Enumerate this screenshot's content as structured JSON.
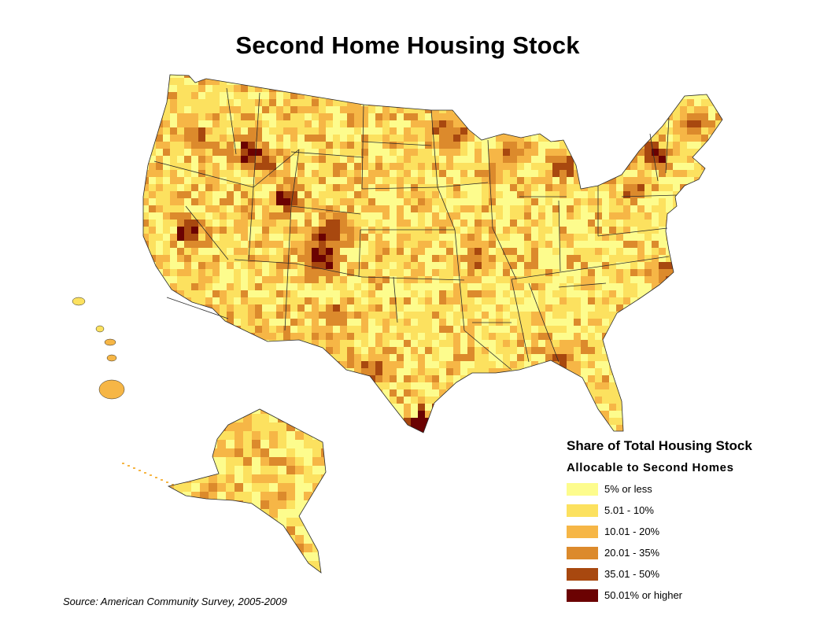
{
  "title": "Second Home Housing Stock",
  "legend": {
    "title_line1": "Share of Total Housing Stock",
    "title_line2": "Allocable to Second Homes",
    "classes": [
      {
        "label": "5% or less",
        "color": "#fdfc8d"
      },
      {
        "label": "5.01 - 10%",
        "color": "#fce15f"
      },
      {
        "label": "10.01 - 20%",
        "color": "#f6b646"
      },
      {
        "label": "20.01 - 35%",
        "color": "#dc8a2c"
      },
      {
        "label": "35.01 - 50%",
        "color": "#a8480f"
      },
      {
        "label": "50.01% or higher",
        "color": "#6b0202"
      }
    ]
  },
  "source": "Source: American Community Survey, 2005-2009",
  "colors": {
    "state_border": "#2a2a2a",
    "background": "#ffffff"
  }
}
